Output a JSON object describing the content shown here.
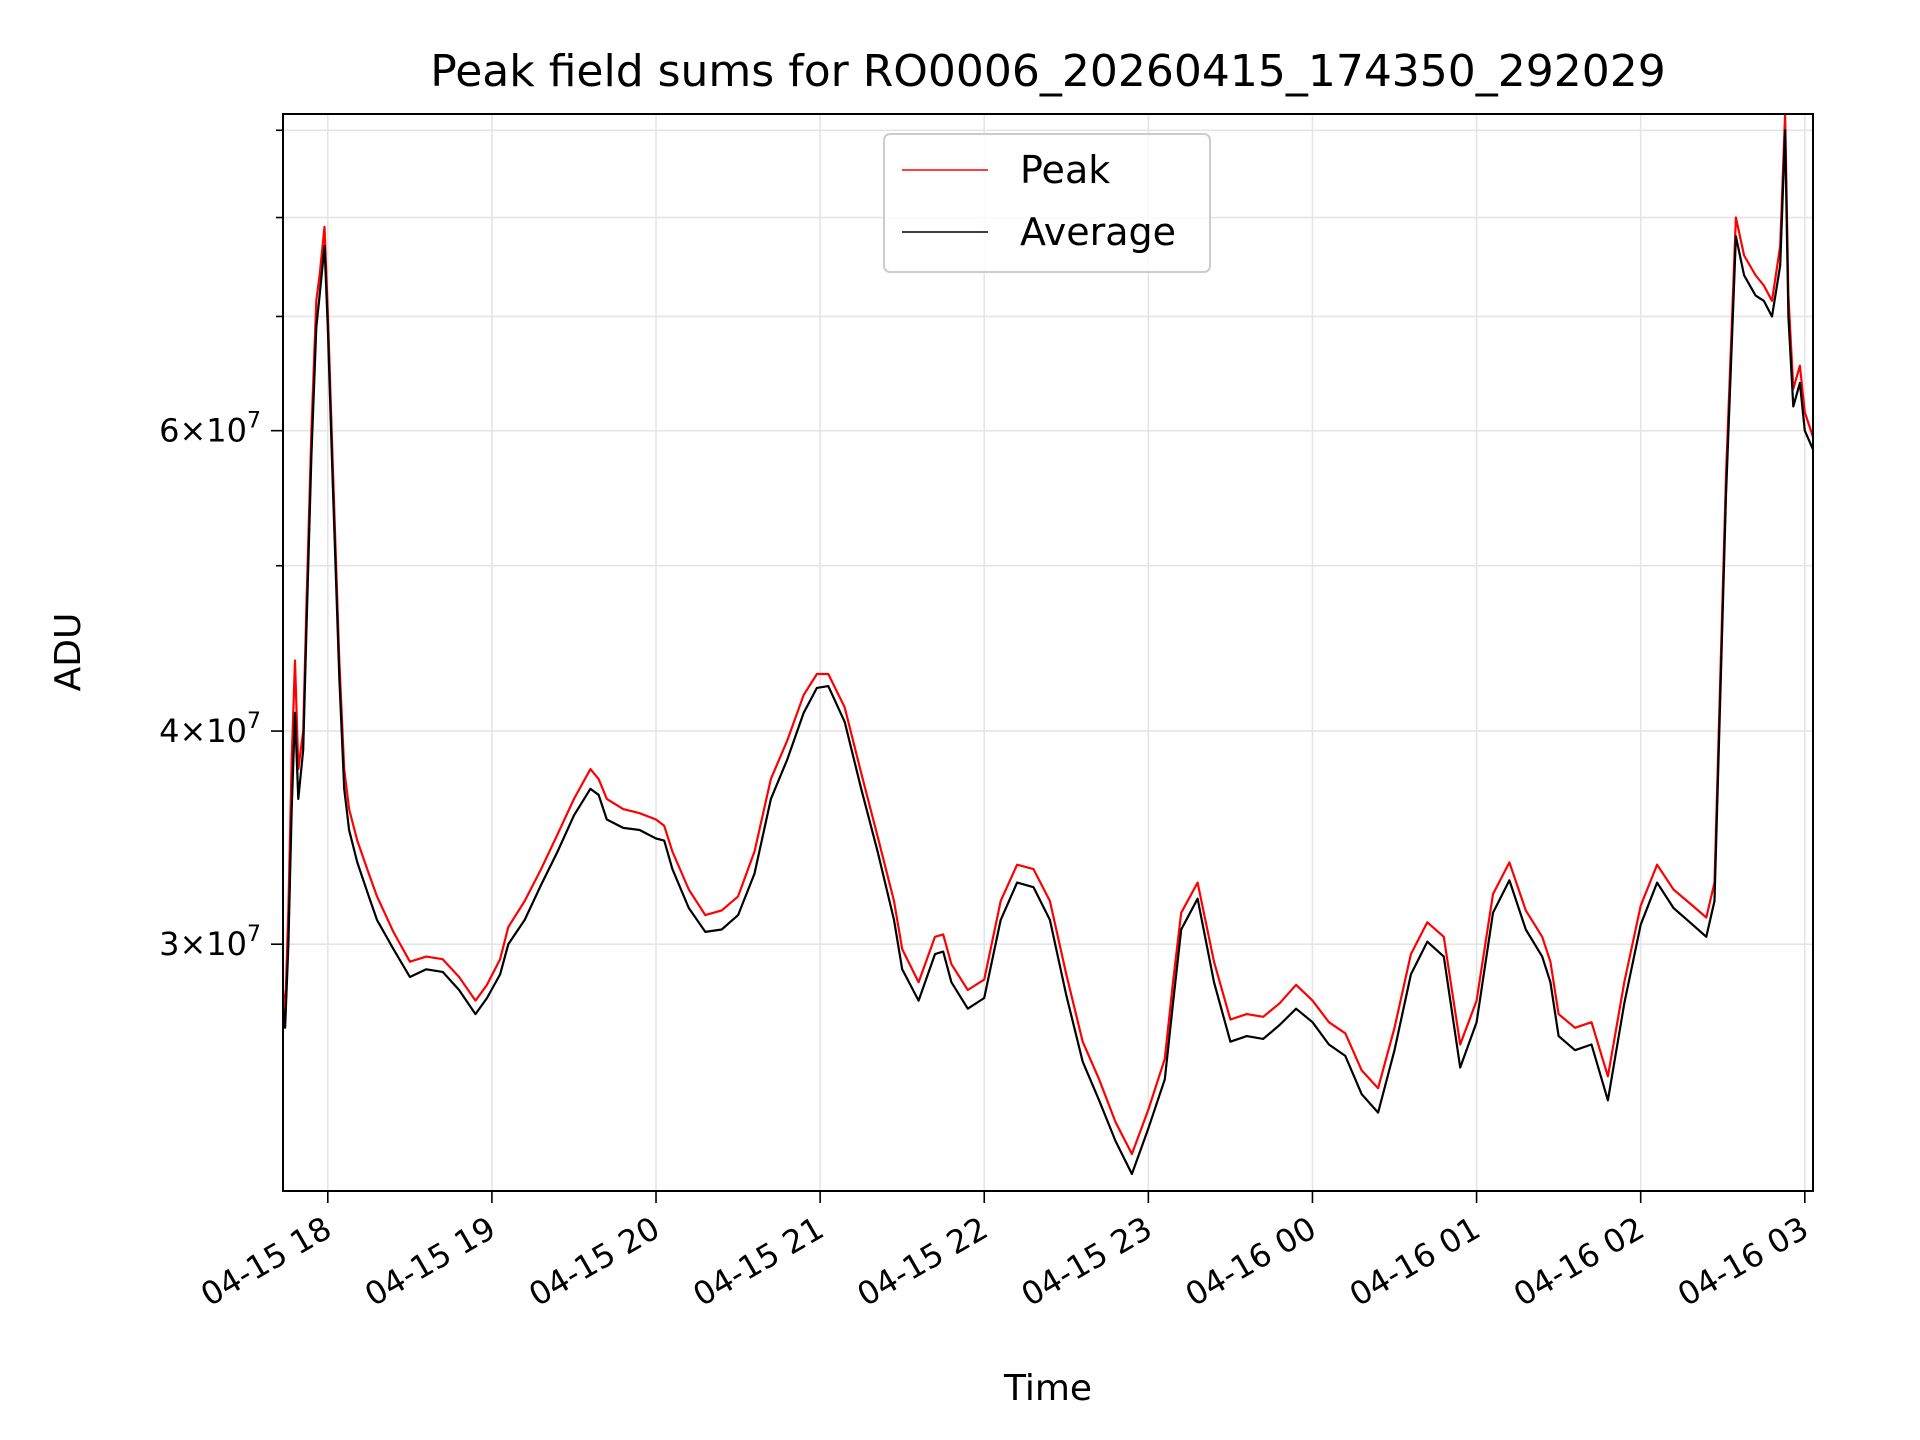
{
  "chart_data": {
    "type": "line",
    "title": "Peak field sums for RO0006_20260415_174350_292029",
    "xlabel": "Time",
    "ylabel": "ADU",
    "yscale": "log",
    "ylim": [
      21500000,
      92000000
    ],
    "xlim_hours": [
      17.727,
      27.05
    ],
    "x_ticks": [
      {
        "label": "04-15 18",
        "hour": 18
      },
      {
        "label": "04-15 19",
        "hour": 19
      },
      {
        "label": "04-15 20",
        "hour": 20
      },
      {
        "label": "04-15 21",
        "hour": 21
      },
      {
        "label": "04-15 22",
        "hour": 22
      },
      {
        "label": "04-15 23",
        "hour": 23
      },
      {
        "label": "04-16 00",
        "hour": 24
      },
      {
        "label": "04-16 01",
        "hour": 25
      },
      {
        "label": "04-16 02",
        "hour": 26
      },
      {
        "label": "04-16 03",
        "hour": 27
      }
    ],
    "y_major_ticks": [
      {
        "value": 30000000,
        "mantissa": "3",
        "exponent": "7"
      },
      {
        "value": 40000000,
        "mantissa": "4",
        "exponent": "7"
      },
      {
        "value": 60000000,
        "mantissa": "6",
        "exponent": "7"
      }
    ],
    "y_minor_ticks": [
      50000000,
      70000000,
      80000000,
      90000000
    ],
    "grid": true,
    "legend_position": "upper-center",
    "legend": [
      {
        "name": "Peak",
        "color": "#ff0000"
      },
      {
        "name": "Average",
        "color": "#000000"
      }
    ],
    "series": [
      {
        "name": "Average",
        "color": "#000000",
        "x_hours": [
          17.727,
          17.74,
          17.76,
          17.78,
          17.8,
          17.82,
          17.85,
          17.87,
          17.9,
          17.93,
          17.95,
          17.98,
          18.0,
          18.03,
          18.07,
          18.1,
          18.13,
          18.18,
          18.25,
          18.3,
          18.4,
          18.5,
          18.6,
          18.7,
          18.8,
          18.9,
          18.97,
          19.05,
          19.1,
          19.2,
          19.3,
          19.4,
          19.5,
          19.6,
          19.65,
          19.7,
          19.8,
          19.9,
          20.0,
          20.05,
          20.1,
          20.2,
          20.3,
          20.4,
          20.5,
          20.6,
          20.7,
          20.8,
          20.9,
          20.98,
          21.05,
          21.15,
          21.25,
          21.35,
          21.45,
          21.5,
          21.6,
          21.7,
          21.75,
          21.8,
          21.9,
          22.0,
          22.1,
          22.2,
          22.3,
          22.4,
          22.5,
          22.6,
          22.7,
          22.8,
          22.9,
          23.0,
          23.1,
          23.15,
          23.2,
          23.3,
          23.4,
          23.5,
          23.6,
          23.7,
          23.8,
          23.9,
          24.0,
          24.1,
          24.2,
          24.3,
          24.4,
          24.5,
          24.6,
          24.7,
          24.8,
          24.9,
          25.0,
          25.1,
          25.2,
          25.3,
          25.4,
          25.45,
          25.5,
          25.6,
          25.7,
          25.8,
          25.9,
          26.0,
          26.1,
          26.2,
          26.3,
          26.4,
          26.45,
          26.52,
          26.58,
          26.63,
          26.7,
          26.75,
          26.8,
          26.85,
          26.88,
          26.9,
          26.93,
          26.97,
          27.0,
          27.05
        ],
        "values": [
          27500000,
          26800000,
          30000000,
          36000000,
          41000000,
          36500000,
          39000000,
          46000000,
          58000000,
          69000000,
          72000000,
          77000000,
          69000000,
          56000000,
          43000000,
          37000000,
          35000000,
          33500000,
          32000000,
          31000000,
          29800000,
          28700000,
          29000000,
          28900000,
          28200000,
          27300000,
          27900000,
          28800000,
          30000000,
          31000000,
          32500000,
          34000000,
          35700000,
          37000000,
          36700000,
          35500000,
          35100000,
          35000000,
          34600000,
          34500000,
          33200000,
          31500000,
          30500000,
          30600000,
          31200000,
          33000000,
          36500000,
          38500000,
          41000000,
          42400000,
          42500000,
          40500000,
          37000000,
          34000000,
          31000000,
          29000000,
          27800000,
          29600000,
          29700000,
          28500000,
          27500000,
          27900000,
          31000000,
          32600000,
          32400000,
          31000000,
          28000000,
          25600000,
          24300000,
          23000000,
          22000000,
          23400000,
          25000000,
          27700000,
          30600000,
          31900000,
          28500000,
          26300000,
          26500000,
          26400000,
          26900000,
          27500000,
          27000000,
          26200000,
          25800000,
          24500000,
          23900000,
          26000000,
          28800000,
          30100000,
          29500000,
          25400000,
          27000000,
          31300000,
          32700000,
          30600000,
          29500000,
          28500000,
          26500000,
          26000000,
          26200000,
          24300000,
          27700000,
          30800000,
          32600000,
          31500000,
          30900000,
          30300000,
          31800000,
          55000000,
          78000000,
          74000000,
          72000000,
          71500000,
          70000000,
          75000000,
          90000000,
          70000000,
          62000000,
          64000000,
          60000000,
          58500000
        ]
      },
      {
        "name": "Peak",
        "color": "#ff0000",
        "x_hours": [
          17.727,
          17.74,
          17.76,
          17.78,
          17.8,
          17.82,
          17.85,
          17.87,
          17.9,
          17.93,
          17.95,
          17.98,
          18.0,
          18.03,
          18.07,
          18.1,
          18.13,
          18.18,
          18.25,
          18.3,
          18.4,
          18.5,
          18.6,
          18.7,
          18.8,
          18.9,
          18.97,
          19.05,
          19.1,
          19.2,
          19.3,
          19.4,
          19.5,
          19.6,
          19.65,
          19.7,
          19.8,
          19.9,
          20.0,
          20.05,
          20.1,
          20.2,
          20.3,
          20.4,
          20.5,
          20.6,
          20.7,
          20.8,
          20.9,
          20.98,
          21.05,
          21.15,
          21.25,
          21.35,
          21.45,
          21.5,
          21.6,
          21.7,
          21.75,
          21.8,
          21.9,
          22.0,
          22.1,
          22.2,
          22.3,
          22.4,
          22.5,
          22.6,
          22.7,
          22.8,
          22.9,
          23.0,
          23.1,
          23.15,
          23.2,
          23.3,
          23.4,
          23.5,
          23.6,
          23.7,
          23.8,
          23.9,
          24.0,
          24.1,
          24.2,
          24.3,
          24.4,
          24.5,
          24.6,
          24.7,
          24.8,
          24.9,
          25.0,
          25.1,
          25.2,
          25.3,
          25.4,
          25.45,
          25.5,
          25.6,
          25.7,
          25.8,
          25.9,
          26.0,
          26.1,
          26.2,
          26.3,
          26.4,
          26.45,
          26.52,
          26.58,
          26.63,
          26.7,
          26.75,
          26.8,
          26.85,
          26.88,
          26.9,
          26.93,
          26.97,
          27.0,
          27.05
        ],
        "values": [
          28200000,
          27300000,
          31500000,
          38500000,
          44000000,
          38000000,
          40000000,
          47500000,
          60000000,
          71500000,
          74000000,
          79000000,
          70500000,
          57500000,
          44000000,
          38000000,
          36000000,
          34500000,
          33000000,
          32000000,
          30500000,
          29300000,
          29500000,
          29400000,
          28700000,
          27800000,
          28400000,
          29400000,
          30700000,
          31800000,
          33200000,
          34800000,
          36500000,
          38000000,
          37500000,
          36500000,
          36000000,
          35800000,
          35500000,
          35200000,
          34000000,
          32300000,
          31200000,
          31400000,
          32000000,
          34000000,
          37500000,
          39500000,
          42000000,
          43200000,
          43200000,
          41300000,
          37800000,
          34700000,
          31800000,
          29800000,
          28500000,
          30300000,
          30400000,
          29200000,
          28200000,
          28600000,
          31800000,
          33400000,
          33200000,
          31800000,
          28800000,
          26300000,
          25000000,
          23600000,
          22600000,
          24000000,
          25700000,
          28500000,
          31300000,
          32600000,
          29300000,
          27100000,
          27300000,
          27200000,
          27700000,
          28400000,
          27800000,
          27000000,
          26600000,
          25300000,
          24700000,
          26800000,
          29600000,
          30900000,
          30300000,
          26200000,
          27800000,
          32100000,
          33500000,
          31400000,
          30300000,
          29300000,
          27300000,
          26800000,
          27000000,
          25100000,
          28500000,
          31600000,
          33400000,
          32300000,
          31700000,
          31100000,
          32600000,
          56500000,
          80000000,
          76000000,
          74000000,
          73000000,
          71500000,
          77000000,
          92000000,
          72000000,
          63500000,
          65500000,
          61500000,
          59500000
        ]
      }
    ]
  }
}
